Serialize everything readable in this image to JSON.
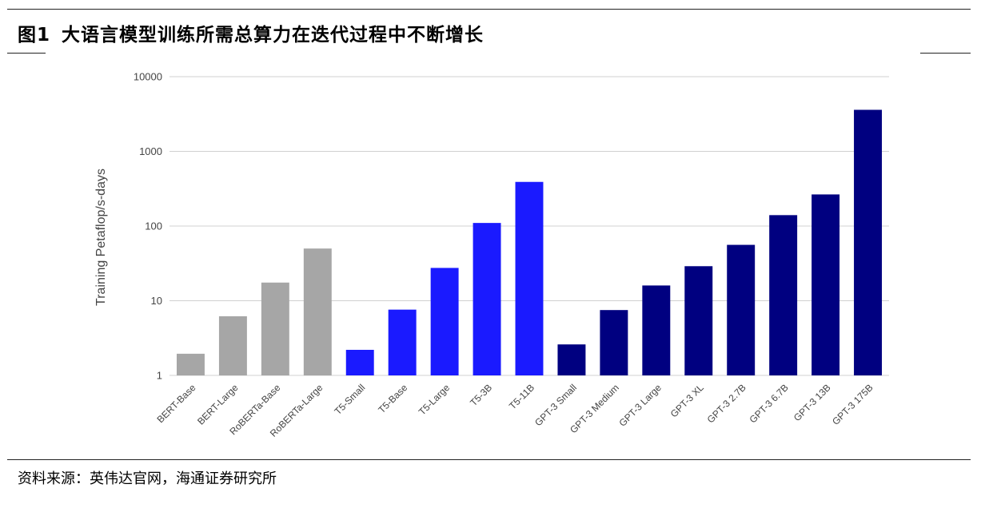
{
  "header": {
    "figure_number": "图1",
    "figure_title": "大语言模型训练所需总算力在迭代过程中不断增长"
  },
  "footer": {
    "source": "资料来源：英伟达官网，海通证券研究所"
  },
  "chart_data": {
    "type": "bar",
    "ylabel": "Training Petaflop/s-days",
    "yscale": "log",
    "ylim": [
      1,
      10000
    ],
    "yticks": [
      {
        "value": 1,
        "label": "1"
      },
      {
        "value": 10,
        "label": "10"
      },
      {
        "value": 100,
        "label": "100"
      },
      {
        "value": 1000,
        "label": "1000"
      },
      {
        "value": 10000,
        "label": "10000"
      }
    ],
    "grid": true,
    "categories": [
      "BERT-Base",
      "BERT-Large",
      "RoBERTa-Base",
      "RoBERTa-Large",
      "T5-Small",
      "T5-Base",
      "T5-Large",
      "T5-3B",
      "T5-11B",
      "GPT-3 Small",
      "GPT-3 Medium",
      "GPT-3 Large",
      "GPT-3 XL",
      "GPT-3 2.7B",
      "GPT-3 6.7B",
      "GPT-3 13B",
      "GPT-3 175B"
    ],
    "values": [
      1.95,
      6.2,
      17.5,
      50,
      2.2,
      7.6,
      27.5,
      110,
      390,
      2.6,
      7.5,
      16,
      29,
      56,
      140,
      265,
      3600
    ],
    "colors": [
      "#a6a6a6",
      "#a6a6a6",
      "#a6a6a6",
      "#a6a6a6",
      "#1a1aff",
      "#1a1aff",
      "#1a1aff",
      "#1a1aff",
      "#1a1aff",
      "#000080",
      "#000080",
      "#000080",
      "#000080",
      "#000080",
      "#000080",
      "#000080",
      "#000080"
    ]
  }
}
